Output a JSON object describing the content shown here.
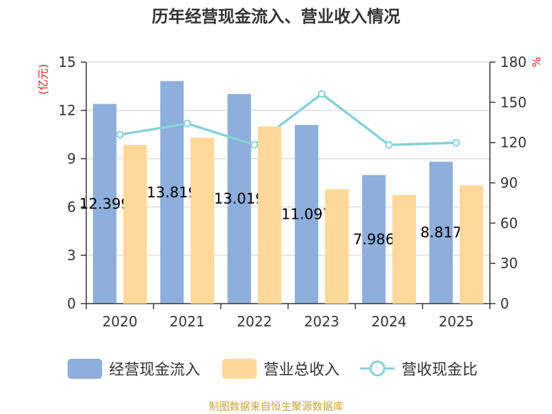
{
  "chart_data": {
    "type": "bar",
    "title": "历年经营现金流入、营业收入情况",
    "categories": [
      "2020",
      "2021",
      "2022",
      "2023",
      "2024",
      "2025"
    ],
    "series": [
      {
        "name": "经营现金流入",
        "kind": "bar",
        "axis": "left",
        "color": "#8eaedb",
        "values": [
          12.399,
          13.819,
          13.019,
          11.097,
          7.986,
          8.817
        ],
        "labels": [
          "12.399",
          "13.819",
          "13.019",
          "11.097",
          "7.986",
          "8.817"
        ]
      },
      {
        "name": "营业总收入",
        "kind": "bar",
        "axis": "left",
        "color": "#ffd89a",
        "values": [
          9.85,
          10.3,
          11.0,
          7.1,
          6.75,
          7.35
        ]
      },
      {
        "name": "营收现金比",
        "kind": "line",
        "axis": "right",
        "color": "#86d1d6",
        "values": [
          125.9,
          134.2,
          118.4,
          156.3,
          118.3,
          119.9
        ]
      }
    ],
    "y_left": {
      "unit": "(亿元)",
      "min": 0,
      "max": 15,
      "ticks": [
        "0",
        "3",
        "6",
        "9",
        "12",
        "15"
      ]
    },
    "y_right": {
      "unit": "%",
      "min": 0,
      "max": 180,
      "ticks": [
        "0",
        "30",
        "60",
        "90",
        "120",
        "150",
        "180"
      ]
    },
    "grid": true,
    "legend_position": "bottom"
  },
  "source_note": "制图数据来自恒生聚源数据库"
}
